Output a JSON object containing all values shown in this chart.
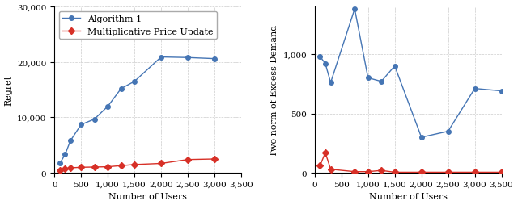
{
  "left_x": [
    100,
    200,
    300,
    500,
    750,
    1000,
    1250,
    1500,
    2000,
    2500,
    3000
  ],
  "left_blue_y": [
    1700,
    3300,
    5800,
    8700,
    9700,
    12000,
    15200,
    16500,
    20900,
    20800,
    20600
  ],
  "left_red_y": [
    400,
    700,
    900,
    1000,
    1050,
    1100,
    1300,
    1500,
    1700,
    2400,
    2500
  ],
  "right_x": [
    100,
    200,
    300,
    750,
    1000,
    1250,
    1500,
    2000,
    2500,
    3000,
    3500
  ],
  "right_blue_y": [
    980,
    920,
    760,
    1380,
    800,
    770,
    900,
    300,
    350,
    710,
    690
  ],
  "right_red_y": [
    60,
    170,
    30,
    10,
    10,
    20,
    5,
    5,
    5,
    5,
    5
  ],
  "blue_color": "#4575b4",
  "red_color": "#d73027",
  "left_ylabel": "Regret",
  "left_xlabel": "Number of Users",
  "right_ylabel": "Two norm of Excess Demand",
  "right_xlabel": "Number of Users",
  "left_ylim": [
    0,
    30000
  ],
  "right_ylim": [
    0,
    1400
  ],
  "left_yticks": [
    0,
    10000,
    20000,
    30000
  ],
  "right_yticks": [
    0,
    500,
    1000
  ],
  "xlim_left": [
    0,
    3500
  ],
  "xlim_right": [
    0,
    3500
  ],
  "xticks": [
    0,
    500,
    1000,
    1500,
    2000,
    2500,
    3000,
    3500
  ],
  "legend_labels": [
    "Algorithm 1",
    "Multiplicative Price Update"
  ],
  "marker_blue": "o",
  "marker_red": "D",
  "markersize": 4,
  "linewidth": 1.0,
  "fontsize_label": 8,
  "fontsize_tick": 7.5,
  "fontsize_legend": 8
}
